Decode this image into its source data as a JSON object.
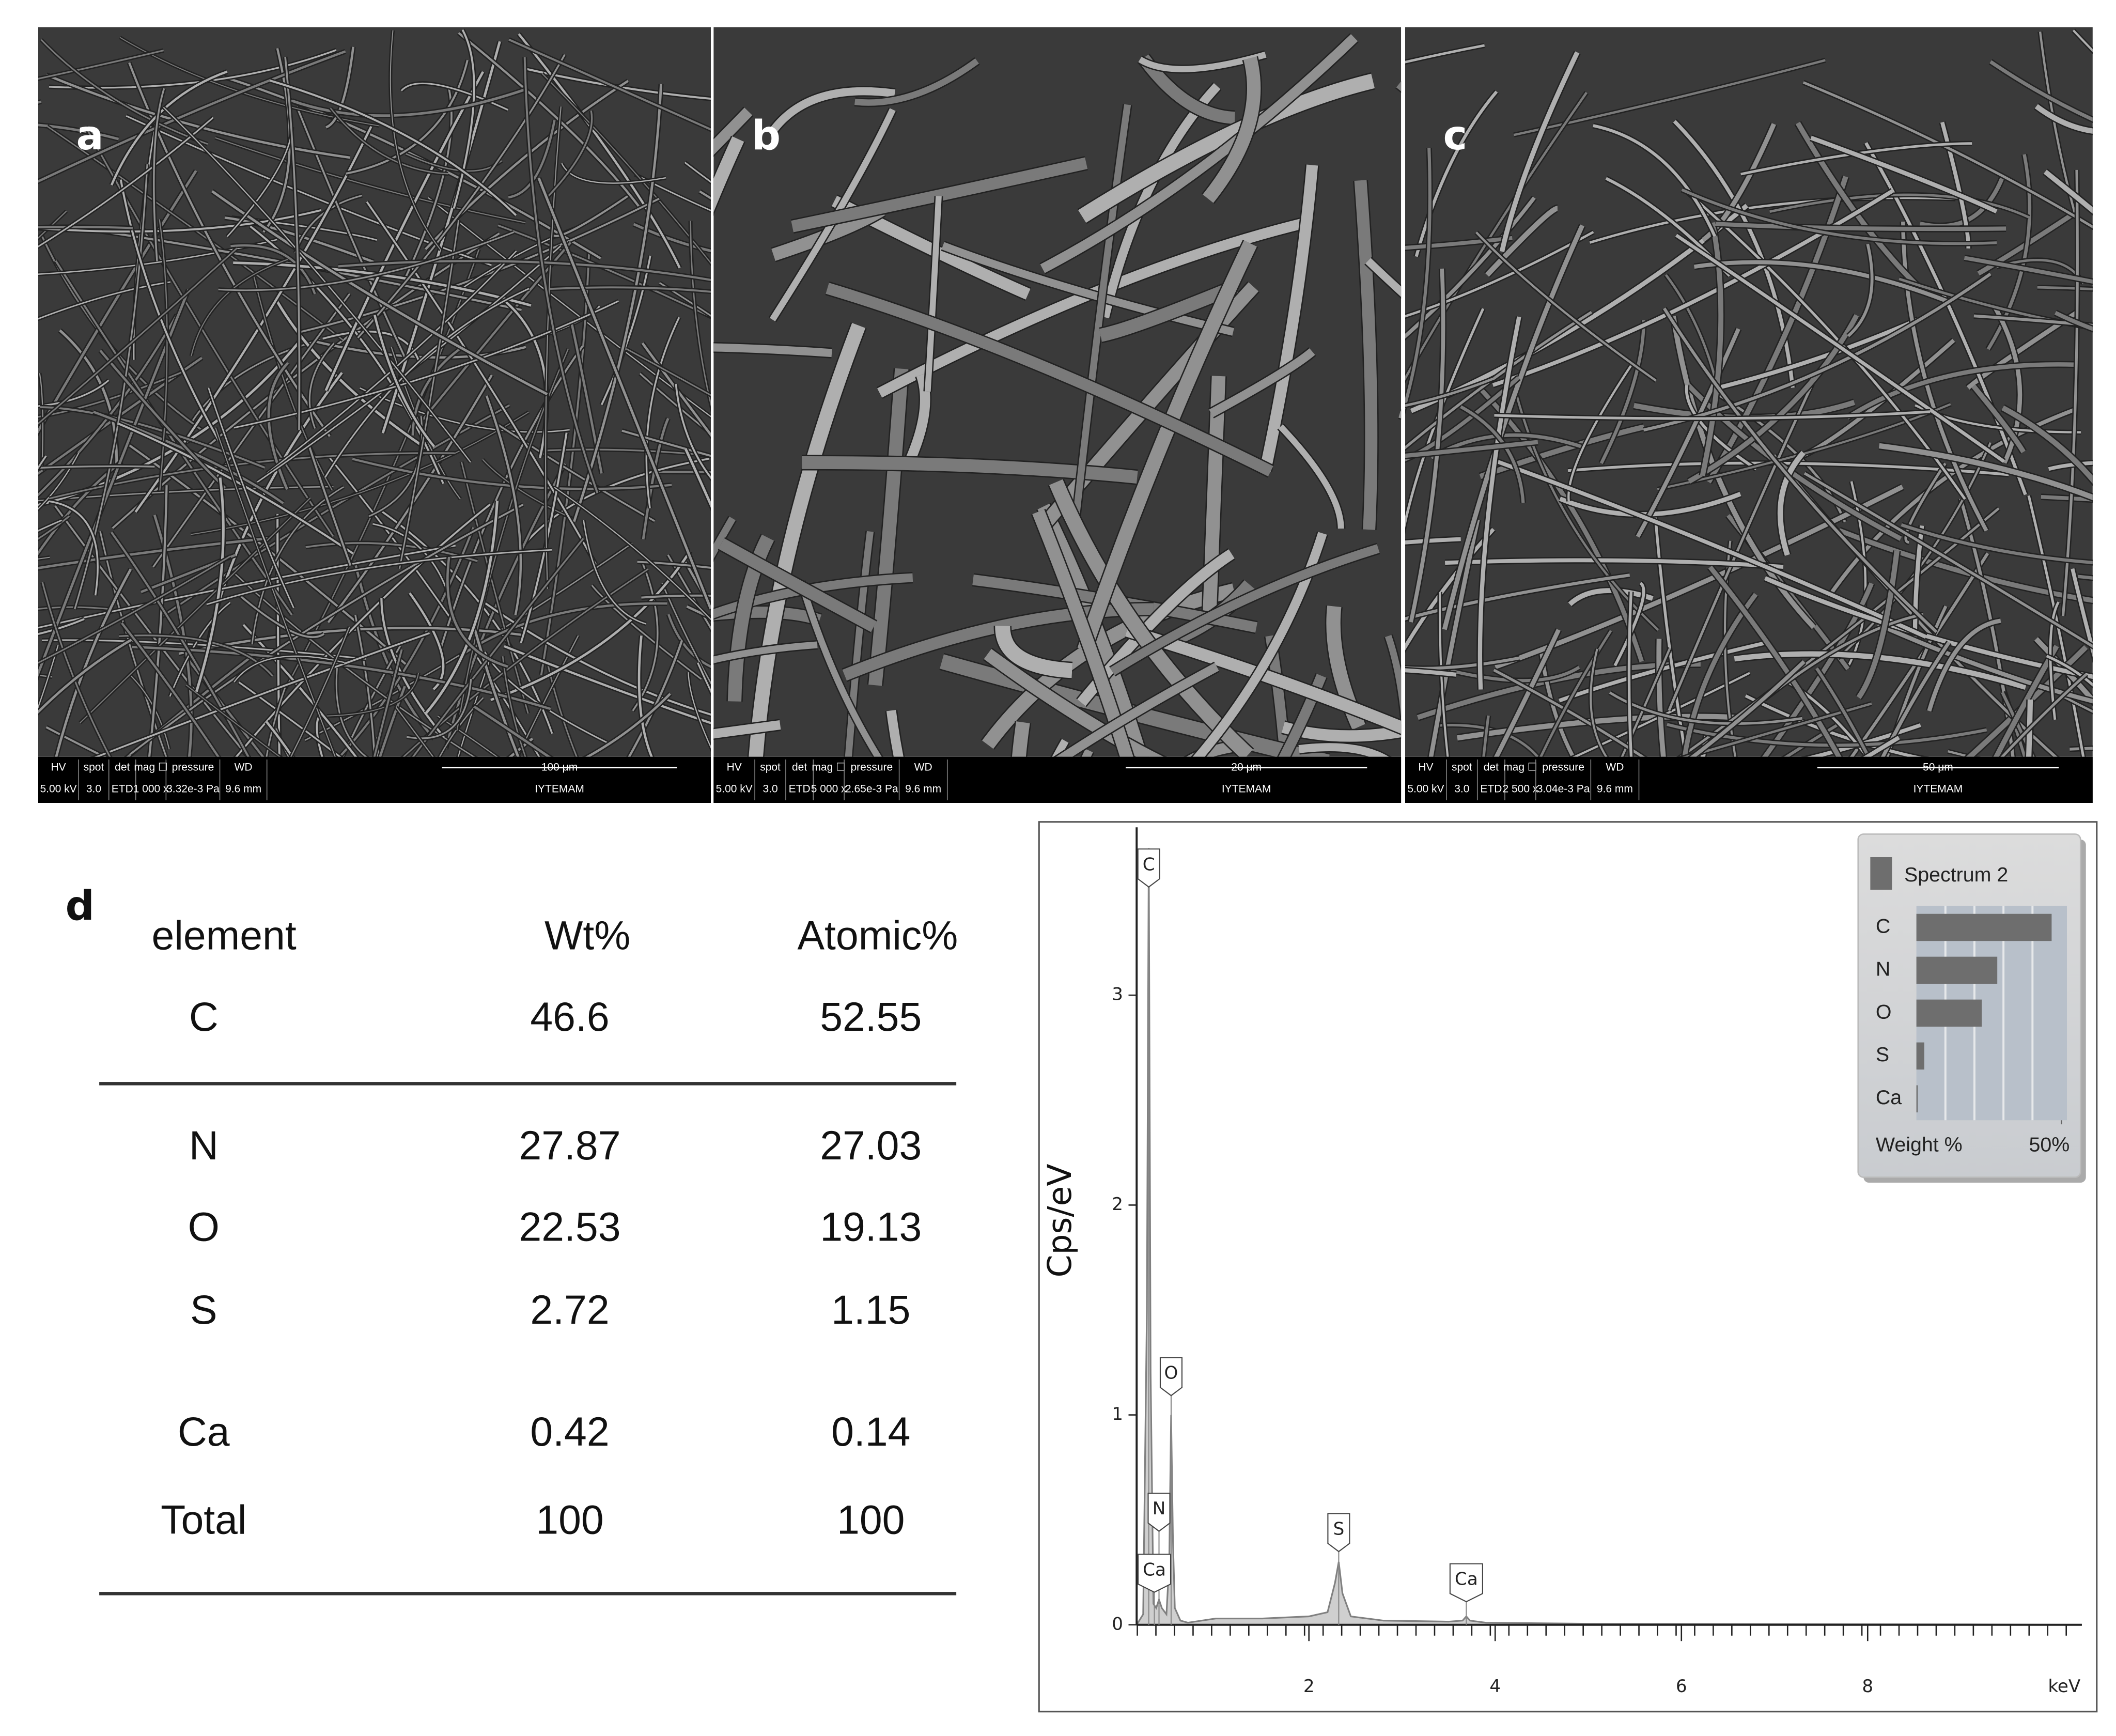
{
  "panels": [
    {
      "label": "a",
      "info": {
        "headers": [
          "HV",
          "spot",
          "det",
          "mag ☐",
          "pressure",
          "WD"
        ],
        "values": [
          "5.00 kV",
          "3.0",
          "ETD",
          "1 000 x",
          "3.32e-3 Pa",
          "9.6 mm"
        ],
        "scale": "100 μm",
        "lab": "IYTEMAM"
      }
    },
    {
      "label": "b",
      "info": {
        "headers": [
          "HV",
          "spot",
          "det",
          "mag ☐",
          "pressure",
          "WD"
        ],
        "values": [
          "5.00 kV",
          "3.0",
          "ETD",
          "5 000 x",
          "2.65e-3 Pa",
          "9.6 mm"
        ],
        "scale": "20 μm",
        "lab": "IYTEMAM"
      }
    },
    {
      "label": "c",
      "info": {
        "headers": [
          "HV",
          "spot",
          "det",
          "mag ☐",
          "pressure",
          "WD"
        ],
        "values": [
          "5.00 kV",
          "3.0",
          "ETD",
          "2 500 x",
          "3.04e-3 Pa",
          "9.6 mm"
        ],
        "scale": "50 μm",
        "lab": "IYTEMAM"
      }
    }
  ],
  "table": {
    "label": "d",
    "header": [
      "element",
      "Wt%",
      "Atomic%"
    ],
    "rows": [
      [
        "C",
        "46.6",
        "52.55"
      ],
      [
        "N",
        "27.87",
        "27.03"
      ],
      [
        "O",
        "22.53",
        "19.13"
      ],
      [
        "S",
        "2.72",
        "1.15"
      ],
      [
        "Ca",
        "0.42",
        "0.14"
      ],
      [
        "Total",
        "100",
        "100"
      ]
    ]
  },
  "chart_data": [
    {
      "type": "line",
      "y_label": "Cps/eV",
      "x_label": "keV",
      "color": "#808080",
      "x": [
        0.15,
        0.22,
        0.26,
        0.28,
        0.3,
        0.33,
        0.36,
        0.39,
        0.42,
        0.47,
        0.5,
        0.52,
        0.54,
        0.56,
        0.58,
        0.62,
        0.7,
        1.0,
        1.5,
        2.0,
        2.2,
        2.28,
        2.32,
        2.36,
        2.45,
        2.8,
        3.5,
        3.65,
        3.69,
        3.73,
        3.9,
        5,
        7,
        9,
        10.3
      ],
      "values": [
        0,
        0.05,
        1.5,
        3.7,
        1.2,
        0.1,
        0.08,
        0.12,
        0.08,
        0.05,
        0.3,
        1.0,
        0.4,
        0.08,
        0.06,
        0.02,
        0.01,
        0.03,
        0.03,
        0.04,
        0.06,
        0.2,
        0.3,
        0.15,
        0.04,
        0.02,
        0.015,
        0.02,
        0.04,
        0.02,
        0.01,
        0.005,
        0.003,
        0.002,
        0
      ],
      "xlim": [
        0.15,
        10.3
      ],
      "ylim": [
        0,
        3.8
      ],
      "xticks": [
        2,
        4,
        6,
        8
      ],
      "yticks": [
        0,
        1,
        2,
        3
      ],
      "peaks": [
        {
          "label": "C",
          "x": 0.28
        },
        {
          "label": "O",
          "x": 0.52
        },
        {
          "label": "N",
          "x": 0.39
        },
        {
          "label": "Ca",
          "x": 0.34
        },
        {
          "label": "S",
          "x": 2.32
        },
        {
          "label": "Ca",
          "x": 3.69
        }
      ]
    },
    {
      "type": "hbar",
      "title": "Spectrum 2",
      "x_label": "Weight %",
      "color": "#6e6e6e",
      "categories": [
        "C",
        "N",
        "O",
        "S",
        "Ca"
      ],
      "values": [
        46.6,
        27.87,
        22.53,
        2.72,
        0.42
      ],
      "xlim": [
        0,
        50
      ],
      "xticks": [
        {
          "value": 50,
          "label": "50%"
        }
      ]
    }
  ]
}
